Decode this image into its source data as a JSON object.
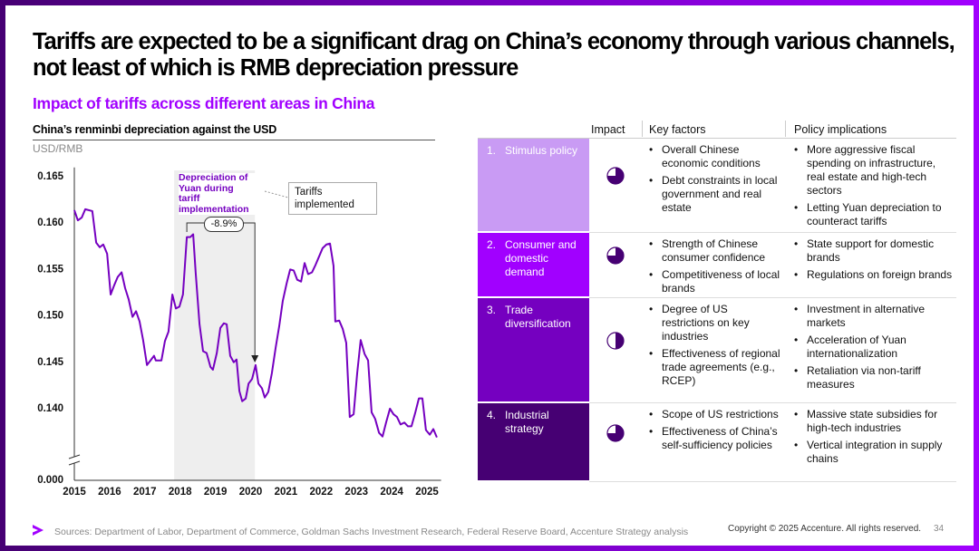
{
  "header": {
    "title": "Tariffs are expected to be a significant drag on China’s economy through various channels, not least of which is RMB depreciation pressure",
    "subtitle": "Impact of tariffs across different areas in China"
  },
  "chart_data": {
    "type": "line",
    "title": "China’s renminbi depreciation against the USD",
    "y_label": "USD/RMB",
    "color": "#7500c0",
    "x": [
      2015,
      2015.1,
      2015.21,
      2015.31,
      2015.51,
      2015.62,
      2015.72,
      2015.82,
      2015.93,
      2016.03,
      2016.13,
      2016.23,
      2016.34,
      2016.44,
      2016.54,
      2016.65,
      2016.75,
      2016.85,
      2016.95,
      2017.06,
      2017.16,
      2017.26,
      2017.31,
      2017.47,
      2017.57,
      2017.67,
      2017.78,
      2017.88,
      2017.98,
      2018.08,
      2018.19,
      2018.29,
      2018.37,
      2018.44,
      2018.55,
      2018.65,
      2018.75,
      2018.86,
      2018.93,
      2019.04,
      2019.14,
      2019.24,
      2019.32,
      2019.42,
      2019.52,
      2019.6,
      2019.68,
      2019.76,
      2019.86,
      2019.94,
      2020.04,
      2020.14,
      2020.22,
      2020.32,
      2020.4,
      2020.5,
      2020.6,
      2020.71,
      2020.81,
      2020.91,
      2021.02,
      2021.12,
      2021.22,
      2021.32,
      2021.43,
      2021.53,
      2021.63,
      2021.74,
      2021.84,
      2021.94,
      2022.04,
      2022.15,
      2022.25,
      2022.35,
      2022.4,
      2022.51,
      2022.61,
      2022.71,
      2022.81,
      2022.92,
      2023.02,
      2023.12,
      2023.23,
      2023.33,
      2023.43,
      2023.53,
      2023.64,
      2023.74,
      2023.84,
      2023.95,
      2024.05,
      2024.15,
      2024.25,
      2024.36,
      2024.46,
      2024.56,
      2024.67,
      2024.77,
      2024.87,
      2024.97,
      2025.08,
      2025.18,
      2025.28
    ],
    "values": [
      0.1614,
      0.1603,
      0.1606,
      0.1615,
      0.1613,
      0.1579,
      0.1574,
      0.1577,
      0.1567,
      0.1523,
      0.1533,
      0.1542,
      0.1547,
      0.153,
      0.1518,
      0.1499,
      0.1505,
      0.1494,
      0.1474,
      0.1447,
      0.1452,
      0.1457,
      0.1452,
      0.1452,
      0.1473,
      0.1483,
      0.1523,
      0.1508,
      0.151,
      0.1523,
      0.1585,
      0.1585,
      0.1588,
      0.1547,
      0.1491,
      0.1462,
      0.146,
      0.1445,
      0.1442,
      0.146,
      0.1487,
      0.1492,
      0.1491,
      0.1457,
      0.145,
      0.1453,
      0.1419,
      0.1408,
      0.1411,
      0.1427,
      0.1432,
      0.1447,
      0.1427,
      0.1422,
      0.1412,
      0.1418,
      0.1438,
      0.1466,
      0.1489,
      0.1516,
      0.1535,
      0.155,
      0.1549,
      0.1539,
      0.1537,
      0.1557,
      0.1545,
      0.1547,
      0.1555,
      0.1564,
      0.1573,
      0.1577,
      0.1578,
      0.1554,
      0.1494,
      0.1495,
      0.1486,
      0.1471,
      0.1391,
      0.1394,
      0.1438,
      0.1474,
      0.1459,
      0.1452,
      0.1396,
      0.1389,
      0.1374,
      0.137,
      0.1385,
      0.14,
      0.1394,
      0.1391,
      0.1383,
      0.1385,
      0.1381,
      0.1381,
      0.1396,
      0.1411,
      0.1411,
      0.1377,
      0.1372,
      0.1378,
      0.1369
    ],
    "xlim": [
      2015,
      2025.4
    ],
    "xticks": [
      2015,
      2016,
      2017,
      2018,
      2019,
      2020,
      2021,
      2022,
      2023,
      2024,
      2025
    ],
    "ylim": [
      0.1355,
      0.166
    ],
    "yticks": [
      {
        "value": 0,
        "label": "0.000"
      },
      {
        "value": 0.14,
        "label": "0.140"
      },
      0.145,
      {
        "value": 0.15,
        "label": "0.150"
      },
      0.155,
      {
        "value": 0.16,
        "label": "0.160"
      },
      0.165
    ],
    "axis_break": true,
    "grid": false,
    "region": {
      "x": [
        2017.83,
        2020.12
      ],
      "label": "Depreciation of Yuan during tariff implementation",
      "change": {
        "value": -8.9,
        "label": "-8.9%"
      }
    },
    "annotation": {
      "text": "Tariffs implemented",
      "x": 2020.12
    }
  },
  "table": {
    "columns": [
      "Impact",
      "Key factors",
      "Policy implications"
    ],
    "rows": [
      {
        "number": "1.",
        "name": "Stimulus policy",
        "color": "#c99bf4",
        "impact": 0.75,
        "factors": [
          "Overall Chinese economic conditions",
          "Debt constraints in local government and real estate"
        ],
        "policies": [
          "More aggressive fiscal spending on infrastructure, real estate and high-tech sectors",
          "Letting Yuan depreciation to counteract tariffs"
        ]
      },
      {
        "number": "2.",
        "name": "Consumer and domestic demand",
        "color": "#a100ff",
        "impact": 0.75,
        "factors": [
          "Strength of Chinese consumer confidence",
          "Competitiveness of local brands"
        ],
        "policies": [
          "State support for domestic brands",
          "Regulations on foreign brands"
        ]
      },
      {
        "number": "3.",
        "name": "Trade diversification",
        "color": "#7500c0",
        "impact": 0.5,
        "factors": [
          "Degree of US restrictions on key industries",
          "Effectiveness of regional trade agreements (e.g., RCEP)"
        ],
        "policies": [
          "Investment in alternative markets",
          "Acceleration of Yuan internationalization",
          "Retaliation via non-tariff measures"
        ]
      },
      {
        "number": "4.",
        "name": "Industrial strategy",
        "color": "#460073",
        "impact": 0.75,
        "factors": [
          "Scope of US restrictions",
          "Effectiveness of China’s self-sufficiency policies"
        ],
        "policies": [
          "Massive state subsidies for high-tech industries",
          "Vertical integration in supply chains"
        ]
      }
    ]
  },
  "footer": {
    "sources": "Sources: Department of Labor, Department of Commerce, Goldman Sachs Investment Research, Federal Reserve Board, Accenture Strategy analysis",
    "copyright": "Copyright © 2025 Accenture. All rights reserved.",
    "page": "34"
  }
}
